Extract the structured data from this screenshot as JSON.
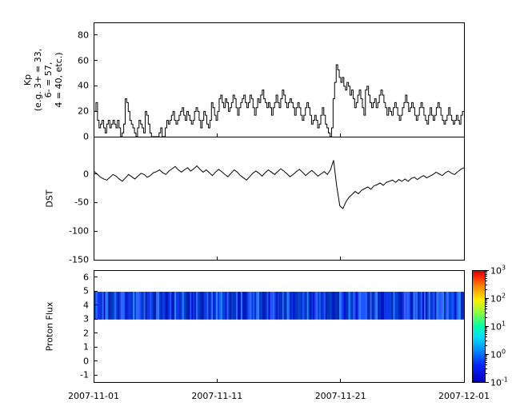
{
  "figure": {
    "background": "#ffffff",
    "x_tick_labels": [
      "2007-11-01",
      "2007-11-11",
      "2007-11-21",
      "2007-12-01"
    ]
  },
  "chart_data": [
    {
      "id": "kp",
      "type": "line",
      "style": "step",
      "ylabel_lines": [
        "Kp",
        "(e.g. 3+ = 33,",
        "6- = 57,",
        "4 = 40, etc.)"
      ],
      "ylim": [
        0,
        90
      ],
      "yticks": [
        80,
        60,
        40,
        20,
        0
      ],
      "x_range": [
        "2007-11-01",
        "2007-12-01"
      ],
      "line_color": "#000000",
      "values": [
        20,
        27,
        13,
        7,
        10,
        13,
        7,
        3,
        10,
        13,
        7,
        10,
        13,
        10,
        7,
        13,
        7,
        0,
        3,
        10,
        30,
        27,
        20,
        13,
        10,
        7,
        3,
        0,
        7,
        13,
        10,
        7,
        3,
        20,
        17,
        10,
        3,
        0,
        0,
        0,
        0,
        0,
        3,
        7,
        0,
        0,
        7,
        13,
        10,
        13,
        17,
        20,
        13,
        10,
        13,
        17,
        20,
        23,
        17,
        13,
        20,
        17,
        13,
        10,
        13,
        20,
        23,
        20,
        13,
        7,
        13,
        20,
        17,
        10,
        7,
        13,
        27,
        23,
        17,
        13,
        20,
        30,
        33,
        27,
        23,
        30,
        27,
        20,
        23,
        27,
        33,
        30,
        23,
        17,
        23,
        27,
        30,
        33,
        27,
        23,
        27,
        33,
        30,
        23,
        17,
        23,
        30,
        27,
        33,
        37,
        30,
        27,
        23,
        27,
        23,
        17,
        23,
        27,
        33,
        27,
        23,
        30,
        37,
        33,
        27,
        23,
        27,
        30,
        27,
        23,
        17,
        23,
        27,
        23,
        17,
        13,
        17,
        23,
        27,
        23,
        17,
        10,
        13,
        17,
        13,
        7,
        10,
        17,
        23,
        17,
        10,
        7,
        3,
        0,
        7,
        30,
        43,
        57,
        53,
        47,
        43,
        47,
        40,
        37,
        43,
        40,
        33,
        37,
        30,
        23,
        27,
        33,
        37,
        30,
        23,
        17,
        37,
        40,
        33,
        27,
        23,
        27,
        30,
        23,
        27,
        33,
        37,
        33,
        27,
        23,
        17,
        23,
        20,
        17,
        23,
        27,
        23,
        17,
        13,
        17,
        23,
        27,
        33,
        27,
        20,
        23,
        27,
        23,
        17,
        13,
        17,
        23,
        27,
        23,
        17,
        13,
        10,
        17,
        23,
        17,
        13,
        17,
        23,
        27,
        23,
        17,
        13,
        10,
        13,
        17,
        23,
        17,
        13,
        10,
        13,
        17,
        13,
        10,
        17,
        20
      ]
    },
    {
      "id": "dst",
      "type": "line",
      "style": "line",
      "ylabel": "DST",
      "ylim": [
        -150,
        65
      ],
      "yticks": [
        0,
        -50,
        -100,
        -150
      ],
      "x_range": [
        "2007-11-01",
        "2007-12-01"
      ],
      "line_color": "#000000",
      "values": [
        5,
        0,
        -5,
        -8,
        -10,
        -5,
        0,
        -3,
        -8,
        -12,
        -6,
        0,
        -4,
        -8,
        -3,
        2,
        0,
        -5,
        -2,
        3,
        5,
        8,
        3,
        0,
        6,
        10,
        14,
        8,
        4,
        8,
        12,
        6,
        10,
        15,
        9,
        4,
        8,
        3,
        -2,
        4,
        9,
        5,
        0,
        -4,
        2,
        8,
        4,
        -2,
        -6,
        -10,
        -4,
        2,
        6,
        2,
        -3,
        3,
        8,
        4,
        0,
        5,
        10,
        6,
        1,
        -4,
        0,
        5,
        9,
        4,
        -2,
        3,
        7,
        2,
        -3,
        1,
        5,
        0,
        8,
        25,
        -20,
        -55,
        -60,
        -48,
        -40,
        -35,
        -30,
        -34,
        -28,
        -25,
        -22,
        -26,
        -20,
        -18,
        -15,
        -19,
        -14,
        -12,
        -10,
        -14,
        -9,
        -12,
        -8,
        -12,
        -7,
        -5,
        -9,
        -5,
        -2,
        -6,
        -3,
        0,
        4,
        1,
        -2,
        3,
        6,
        2,
        0,
        5,
        9,
        12
      ]
    },
    {
      "id": "proton",
      "type": "heatmap",
      "ylabel": "Proton Flux",
      "ylim": [
        -1.5,
        6.5
      ],
      "yticks": [
        6,
        5,
        4,
        3,
        2,
        1,
        0,
        -1
      ],
      "x_range": [
        "2007-11-01",
        "2007-12-01"
      ],
      "band": {
        "y_min": 3,
        "y_max": 5,
        "colors": [
          "#0011cc",
          "#1133ee",
          "#0033bb",
          "#2255ff",
          "#0044dd",
          "#3366ff",
          "#0022aa",
          "#2288ff"
        ]
      },
      "colorbar": {
        "scale": "log",
        "tick_exponents": [
          3,
          2,
          1,
          0,
          -1
        ],
        "gradient": [
          "#cc0000 0%",
          "#ff2200 5%",
          "#ff8800 14%",
          "#ffee00 26%",
          "#88ff44 38%",
          "#00ffaa 50%",
          "#00ddff 60%",
          "#0088ff 72%",
          "#0022ff 85%",
          "#0000bb 100%"
        ]
      }
    }
  ]
}
